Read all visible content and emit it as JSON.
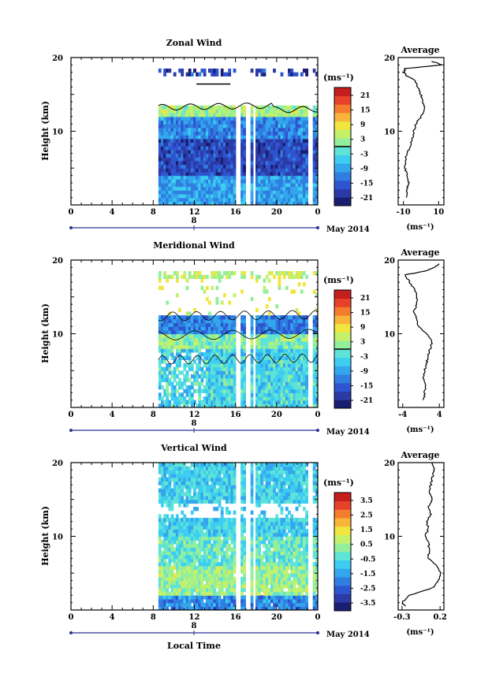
{
  "colors": {
    "colormap": [
      "#1a1e70",
      "#2b3aa6",
      "#2e55d0",
      "#2f7ee0",
      "#33a6ee",
      "#3ccdf0",
      "#5fe3d7",
      "#93ef9b",
      "#c5f06a",
      "#f0e63f",
      "#f8b53a",
      "#f47c2f",
      "#e8422b",
      "#c41e1f"
    ],
    "missing": "#ffffff",
    "line": "#000000",
    "axis_blue": "#303090"
  },
  "common": {
    "ylabel": "Height (km)",
    "x_ticks": [
      "0",
      "4",
      "8",
      "12",
      "16",
      "20",
      "0"
    ],
    "y_ticks": [
      "20",
      "10"
    ],
    "day_label": "8",
    "date_label": "May 2014",
    "unit_label": "(ms⁻¹)",
    "avg_title": "Average",
    "avg_unit": "(ms⁻¹)"
  },
  "xlabel": "Local Time",
  "chart_data": [
    {
      "type": "heatmap",
      "title": "Zonal Wind",
      "xlabel": "",
      "ylabel": "Height (km)",
      "x_range": [
        0,
        24
      ],
      "y_range": [
        0,
        20
      ],
      "data_start_hour": 8.5,
      "colorbar": {
        "ticks": [
          "21",
          "15",
          "9",
          "3",
          "-3",
          "-9",
          "-15",
          "-21"
        ],
        "range": [
          -24,
          24
        ],
        "zero_line": true
      },
      "profile": {
        "title": "Average",
        "x_range": [
          -13,
          13
        ],
        "x_ticks": [
          "-10",
          "10"
        ],
        "x_tick_values": [
          -10,
          10
        ],
        "heights": [
          1,
          2,
          3,
          4,
          5,
          6,
          7,
          8,
          9,
          10,
          11,
          12,
          13,
          14,
          15,
          16,
          17,
          17.5,
          18,
          18.5,
          19,
          19.5
        ],
        "values": [
          -8,
          -8,
          -7,
          -8,
          -9,
          -9,
          -8,
          -6,
          -5,
          -4,
          -3,
          0,
          2,
          1,
          0,
          -2,
          -4,
          -8,
          -10,
          -9,
          12,
          6
        ]
      }
    },
    {
      "type": "heatmap",
      "title": "Meridional Wind",
      "xlabel": "",
      "ylabel": "Height (km)",
      "x_range": [
        0,
        24
      ],
      "y_range": [
        0,
        20
      ],
      "data_start_hour": 8.5,
      "colorbar": {
        "ticks": [
          "21",
          "15",
          "9",
          "3",
          "-3",
          "-9",
          "-15",
          "-21"
        ],
        "range": [
          -24,
          24
        ],
        "zero_line": true
      },
      "profile": {
        "title": "Average",
        "x_range": [
          -5,
          5
        ],
        "x_ticks": [
          "-4",
          "4"
        ],
        "x_tick_values": [
          -4,
          4
        ],
        "heights": [
          1,
          2,
          3,
          4,
          5,
          6,
          7,
          8,
          9,
          10,
          11,
          12,
          13,
          14,
          15,
          16,
          17,
          18,
          18.5,
          19,
          19.5
        ],
        "values": [
          0.5,
          0.8,
          1,
          0.5,
          0.8,
          1.2,
          1.5,
          2,
          2.5,
          1.2,
          -0.5,
          -1,
          -1.5,
          -1,
          -0.8,
          -1.5,
          -2.5,
          -3.5,
          1,
          3,
          4
        ]
      }
    },
    {
      "type": "heatmap",
      "title": "Vertical Wind",
      "xlabel": "Local Time",
      "ylabel": "Height (km)",
      "x_range": [
        0,
        24
      ],
      "y_range": [
        0,
        20
      ],
      "data_start_hour": 8.5,
      "colorbar": {
        "ticks": [
          "3.5",
          "2.5",
          "1.5",
          "0.5",
          "-0.5",
          "-1.5",
          "-2.5",
          "-3.5"
        ],
        "range": [
          -4,
          4
        ],
        "zero_line": false
      },
      "profile": {
        "title": "Average",
        "x_range": [
          -0.35,
          0.25
        ],
        "x_ticks": [
          "-0.3",
          "0.2"
        ],
        "x_tick_values": [
          -0.3,
          0.2
        ],
        "heights": [
          0.5,
          1,
          2,
          3,
          4,
          5,
          6,
          7,
          8,
          9,
          10,
          11,
          12,
          13,
          14,
          15,
          16,
          17,
          18,
          19,
          20
        ],
        "values": [
          -0.25,
          -0.3,
          -0.2,
          0.1,
          0.18,
          0.2,
          0.15,
          0.05,
          0.05,
          0.05,
          0.0,
          0.05,
          0.02,
          0.08,
          0.05,
          0.1,
          0.05,
          0.08,
          0.1,
          0.12,
          0.1
        ]
      }
    }
  ]
}
